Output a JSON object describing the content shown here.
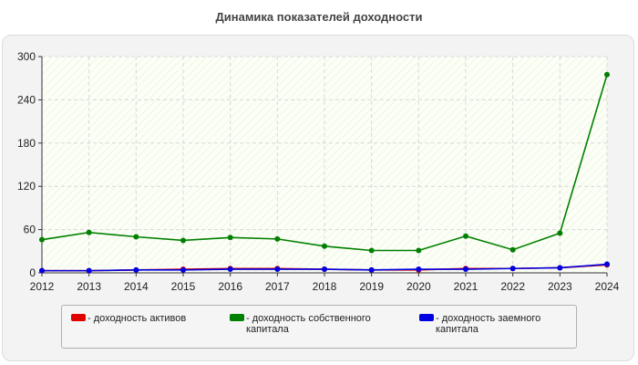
{
  "title": "Динамика показателей доходности",
  "chart_data": {
    "type": "line",
    "title": "Динамика показателей доходности",
    "xlabel": "",
    "ylabel": "",
    "x": [
      "2012",
      "2013",
      "2014",
      "2015",
      "2016",
      "2017",
      "2018",
      "2019",
      "2020",
      "2021",
      "2022",
      "2023",
      "2024"
    ],
    "ylim": [
      0,
      300
    ],
    "yticks": [
      0,
      60,
      120,
      180,
      240,
      300
    ],
    "grid": true,
    "legend_position": "bottom",
    "series": [
      {
        "name": "- доходность активов",
        "color": "#e00000",
        "values": [
          3,
          3,
          4,
          5,
          6,
          6,
          5,
          4,
          4,
          6,
          6,
          7,
          11
        ]
      },
      {
        "name": "- доходность собственного капитала",
        "color": "#008000",
        "values": [
          46,
          56,
          50,
          45,
          49,
          47,
          37,
          31,
          31,
          51,
          32,
          55,
          275
        ]
      },
      {
        "name": "- доходность заемного капитала",
        "color": "#0000e0",
        "values": [
          3,
          3,
          4,
          4,
          5,
          5,
          5,
          4,
          5,
          5,
          6,
          7,
          12
        ]
      }
    ]
  }
}
